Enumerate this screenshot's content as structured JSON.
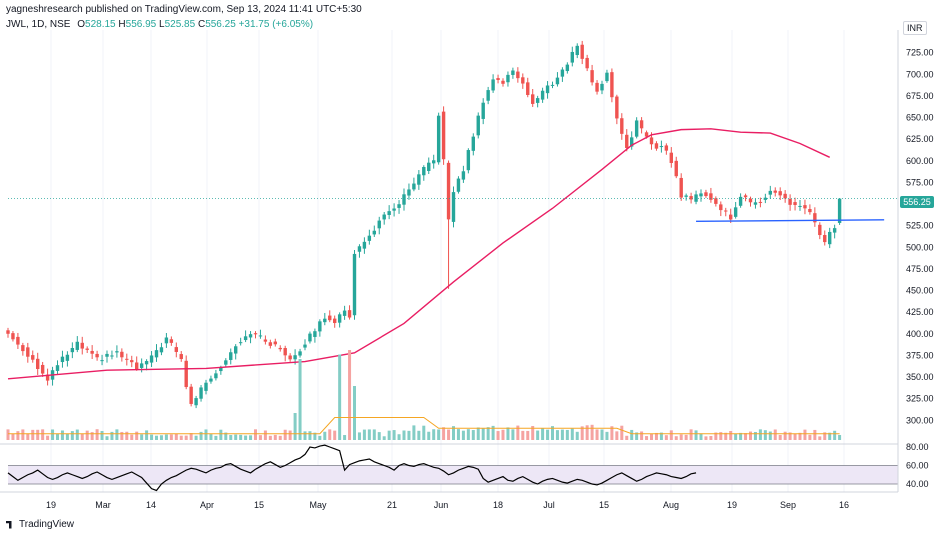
{
  "publisher_line": "yagneshresearch published on TradingView.com, Sep 13, 2024 11:41 UTC+5:30",
  "legend": {
    "symbol": "JWL, 1D, NSE",
    "open_label": "O",
    "open": "528.15",
    "high_label": "H",
    "high": "556.95",
    "low_label": "L",
    "low": "525.85",
    "close_label": "C",
    "close": "556.25",
    "change": "+31.75 (+6.05%)"
  },
  "currency_badge": "INR",
  "current_price_label": "556.25",
  "brand": "TradingView",
  "colors": {
    "up": "#26a69a",
    "down": "#ef5350",
    "ma": "#e91e63",
    "support": "#2962ff",
    "rsi": "#000000",
    "rsi_band": "#ede7f6",
    "volume_ma": "#f5a623"
  },
  "chart_data": [
    {
      "type": "candlestick",
      "title": "JWL, 1D, NSE",
      "ylim": [
        275,
        750
      ],
      "y_ticks": [
        "725.00",
        "700.00",
        "675.00",
        "650.00",
        "625.00",
        "600.00",
        "575.00",
        "550.00",
        "525.00",
        "500.00",
        "475.00",
        "450.00",
        "425.00",
        "400.00",
        "375.00",
        "350.00",
        "325.00",
        "300.00"
      ],
      "x_ticks": [
        "19",
        "Mar",
        "14",
        "Apr",
        "15",
        "May",
        "21",
        "Jun",
        "18",
        "Jul",
        "15",
        "Aug",
        "19",
        "Sep",
        "16"
      ],
      "anchors": [
        {
          "i": 0,
          "c": 400
        },
        {
          "i": 5,
          "c": 370
        },
        {
          "i": 8,
          "c": 345
        },
        {
          "i": 10,
          "c": 365
        },
        {
          "i": 14,
          "c": 388
        },
        {
          "i": 18,
          "c": 370
        },
        {
          "i": 22,
          "c": 378
        },
        {
          "i": 26,
          "c": 360
        },
        {
          "i": 29,
          "c": 372
        },
        {
          "i": 32,
          "c": 395
        },
        {
          "i": 35,
          "c": 370
        },
        {
          "i": 36,
          "c": 340
        },
        {
          "i": 37,
          "c": 318
        },
        {
          "i": 40,
          "c": 345
        },
        {
          "i": 43,
          "c": 362
        },
        {
          "i": 46,
          "c": 388
        },
        {
          "i": 49,
          "c": 402
        },
        {
          "i": 52,
          "c": 392
        },
        {
          "i": 55,
          "c": 382
        },
        {
          "i": 57,
          "c": 372
        },
        {
          "i": 59,
          "c": 382
        },
        {
          "i": 62,
          "c": 405
        },
        {
          "i": 64,
          "c": 420
        },
        {
          "i": 66,
          "c": 415
        },
        {
          "i": 68,
          "c": 425
        },
        {
          "i": 69,
          "c": 420
        },
        {
          "i": 70,
          "c": 495
        },
        {
          "i": 72,
          "c": 505
        },
        {
          "i": 75,
          "c": 530
        },
        {
          "i": 78,
          "c": 545
        },
        {
          "i": 81,
          "c": 565
        },
        {
          "i": 84,
          "c": 590
        },
        {
          "i": 86,
          "c": 600
        },
        {
          "i": 87,
          "c": 655
        },
        {
          "i": 88,
          "c": 600
        },
        {
          "i": 89,
          "c": 530
        },
        {
          "i": 90,
          "c": 565
        },
        {
          "i": 92,
          "c": 590
        },
        {
          "i": 94,
          "c": 630
        },
        {
          "i": 96,
          "c": 670
        },
        {
          "i": 98,
          "c": 695
        },
        {
          "i": 100,
          "c": 690
        },
        {
          "i": 102,
          "c": 705
        },
        {
          "i": 104,
          "c": 690
        },
        {
          "i": 106,
          "c": 665
        },
        {
          "i": 108,
          "c": 680
        },
        {
          "i": 110,
          "c": 690
        },
        {
          "i": 113,
          "c": 712
        },
        {
          "i": 115,
          "c": 735
        },
        {
          "i": 117,
          "c": 705
        },
        {
          "i": 119,
          "c": 680
        },
        {
          "i": 121,
          "c": 700
        },
        {
          "i": 123,
          "c": 650
        },
        {
          "i": 125,
          "c": 615
        },
        {
          "i": 127,
          "c": 645
        },
        {
          "i": 129,
          "c": 625
        },
        {
          "i": 131,
          "c": 615
        },
        {
          "i": 132,
          "c": 620
        },
        {
          "i": 134,
          "c": 600
        },
        {
          "i": 136,
          "c": 560
        },
        {
          "i": 138,
          "c": 555
        },
        {
          "i": 140,
          "c": 565
        },
        {
          "i": 142,
          "c": 555
        },
        {
          "i": 144,
          "c": 545
        },
        {
          "i": 146,
          "c": 535
        },
        {
          "i": 148,
          "c": 560
        },
        {
          "i": 150,
          "c": 550
        },
        {
          "i": 152,
          "c": 555
        },
        {
          "i": 154,
          "c": 565
        },
        {
          "i": 156,
          "c": 560
        },
        {
          "i": 158,
          "c": 550
        },
        {
          "i": 160,
          "c": 548
        },
        {
          "i": 162,
          "c": 540
        },
        {
          "i": 164,
          "c": 512
        },
        {
          "i": 165,
          "c": 505
        },
        {
          "i": 166,
          "c": 515
        },
        {
          "i": 167,
          "c": 524
        },
        {
          "i": 168,
          "c": 556.25
        }
      ],
      "moving_average": [
        {
          "i": 0,
          "v": 348
        },
        {
          "i": 20,
          "v": 358
        },
        {
          "i": 40,
          "v": 360
        },
        {
          "i": 60,
          "v": 368
        },
        {
          "i": 70,
          "v": 378
        },
        {
          "i": 80,
          "v": 412
        },
        {
          "i": 90,
          "v": 460
        },
        {
          "i": 100,
          "v": 505
        },
        {
          "i": 110,
          "v": 545
        },
        {
          "i": 120,
          "v": 590
        },
        {
          "i": 126,
          "v": 618
        },
        {
          "i": 130,
          "v": 630
        },
        {
          "i": 136,
          "v": 636
        },
        {
          "i": 142,
          "v": 637
        },
        {
          "i": 148,
          "v": 633
        },
        {
          "i": 154,
          "v": 632
        },
        {
          "i": 160,
          "v": 620
        },
        {
          "i": 166,
          "v": 604
        }
      ],
      "support_line": {
        "from_i": 139,
        "to_i": 177,
        "price": 530
      }
    },
    {
      "type": "bar",
      "title": "Volume",
      "spikes": [
        {
          "i": 58,
          "v": 0.3
        },
        {
          "i": 59,
          "v": 0.9
        },
        {
          "i": 67,
          "v": 0.95
        },
        {
          "i": 69,
          "v": 1.0
        },
        {
          "i": 70,
          "v": 0.6
        }
      ],
      "moving_average_level": 0.2
    },
    {
      "type": "line",
      "title": "RSI",
      "ylim": [
        30,
        95
      ],
      "y_ticks": [
        "80.00",
        "60.00",
        "40.00"
      ],
      "band": [
        40,
        60
      ],
      "values": [
        52,
        48,
        44,
        47,
        50,
        52,
        55,
        51,
        47,
        45,
        47,
        50,
        52,
        50,
        48,
        46,
        48,
        51,
        53,
        50,
        47,
        45,
        47,
        49,
        51,
        53,
        50,
        47,
        41,
        35,
        33,
        40,
        44,
        47,
        49,
        52,
        55,
        57,
        56,
        54,
        52,
        55,
        57,
        58,
        61,
        62,
        59,
        56,
        54,
        52,
        56,
        59,
        62,
        64,
        61,
        58,
        60,
        63,
        66,
        68,
        72,
        80,
        79,
        81,
        82,
        80,
        78,
        76,
        55,
        61,
        63,
        65,
        66,
        67,
        64,
        62,
        60,
        58,
        55,
        60,
        62,
        60,
        59,
        61,
        62,
        60,
        58,
        57,
        54,
        50,
        52,
        55,
        57,
        59,
        58,
        56,
        46,
        42,
        44,
        46,
        48,
        44,
        43,
        46,
        48,
        45,
        42,
        40,
        43,
        45,
        46,
        44,
        42,
        41,
        43,
        45,
        44,
        42,
        40,
        39,
        41,
        44,
        47,
        50,
        52,
        49,
        46,
        43,
        45,
        48,
        50,
        52,
        51,
        50,
        48,
        47,
        46,
        48,
        51,
        52
      ]
    }
  ]
}
